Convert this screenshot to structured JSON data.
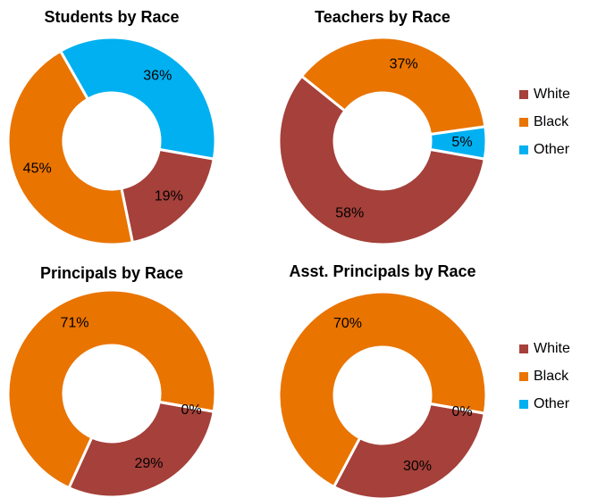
{
  "chart_data": [
    {
      "type": "donut",
      "title": "Students by Race",
      "categories": [
        "White",
        "Black",
        "Other"
      ],
      "values": [
        19,
        45,
        36
      ],
      "value_labels": [
        "19%",
        "45%",
        "36%"
      ],
      "colors": [
        "#a5403a",
        "#e97400",
        "#00b0f0"
      ]
    },
    {
      "type": "donut",
      "title": "Teachers by Race",
      "categories": [
        "White",
        "Black",
        "Other"
      ],
      "values": [
        58,
        37,
        5
      ],
      "value_labels": [
        "58%",
        "37%",
        "5%"
      ],
      "colors": [
        "#a5403a",
        "#e97400",
        "#00b0f0"
      ]
    },
    {
      "type": "donut",
      "title": "Principals by Race",
      "categories": [
        "White",
        "Black",
        "Other"
      ],
      "values": [
        29,
        71,
        0
      ],
      "value_labels": [
        "29%",
        "71%",
        "0%"
      ],
      "colors": [
        "#a5403a",
        "#e97400",
        "#00b0f0"
      ]
    },
    {
      "type": "donut",
      "title": "Asst. Principals by Race",
      "categories": [
        "White",
        "Black",
        "Other"
      ],
      "values": [
        30,
        70,
        0
      ],
      "value_labels": [
        "30%",
        "70%",
        "0%"
      ],
      "colors": [
        "#a5403a",
        "#e97400",
        "#00b0f0"
      ]
    }
  ]
}
